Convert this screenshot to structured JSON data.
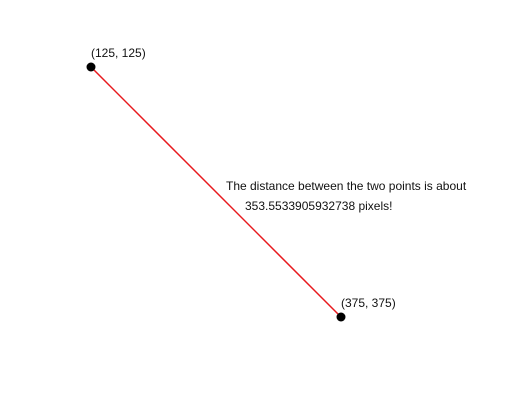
{
  "point_a": {
    "label": "(125, 125)"
  },
  "point_b": {
    "label": "(375, 375)"
  },
  "message": {
    "line1": "The distance between the two points is about",
    "line2": "353.5533905932738 pixels!"
  },
  "colors": {
    "segment": "#e8191e",
    "point": "#000000",
    "text": "#111111"
  }
}
